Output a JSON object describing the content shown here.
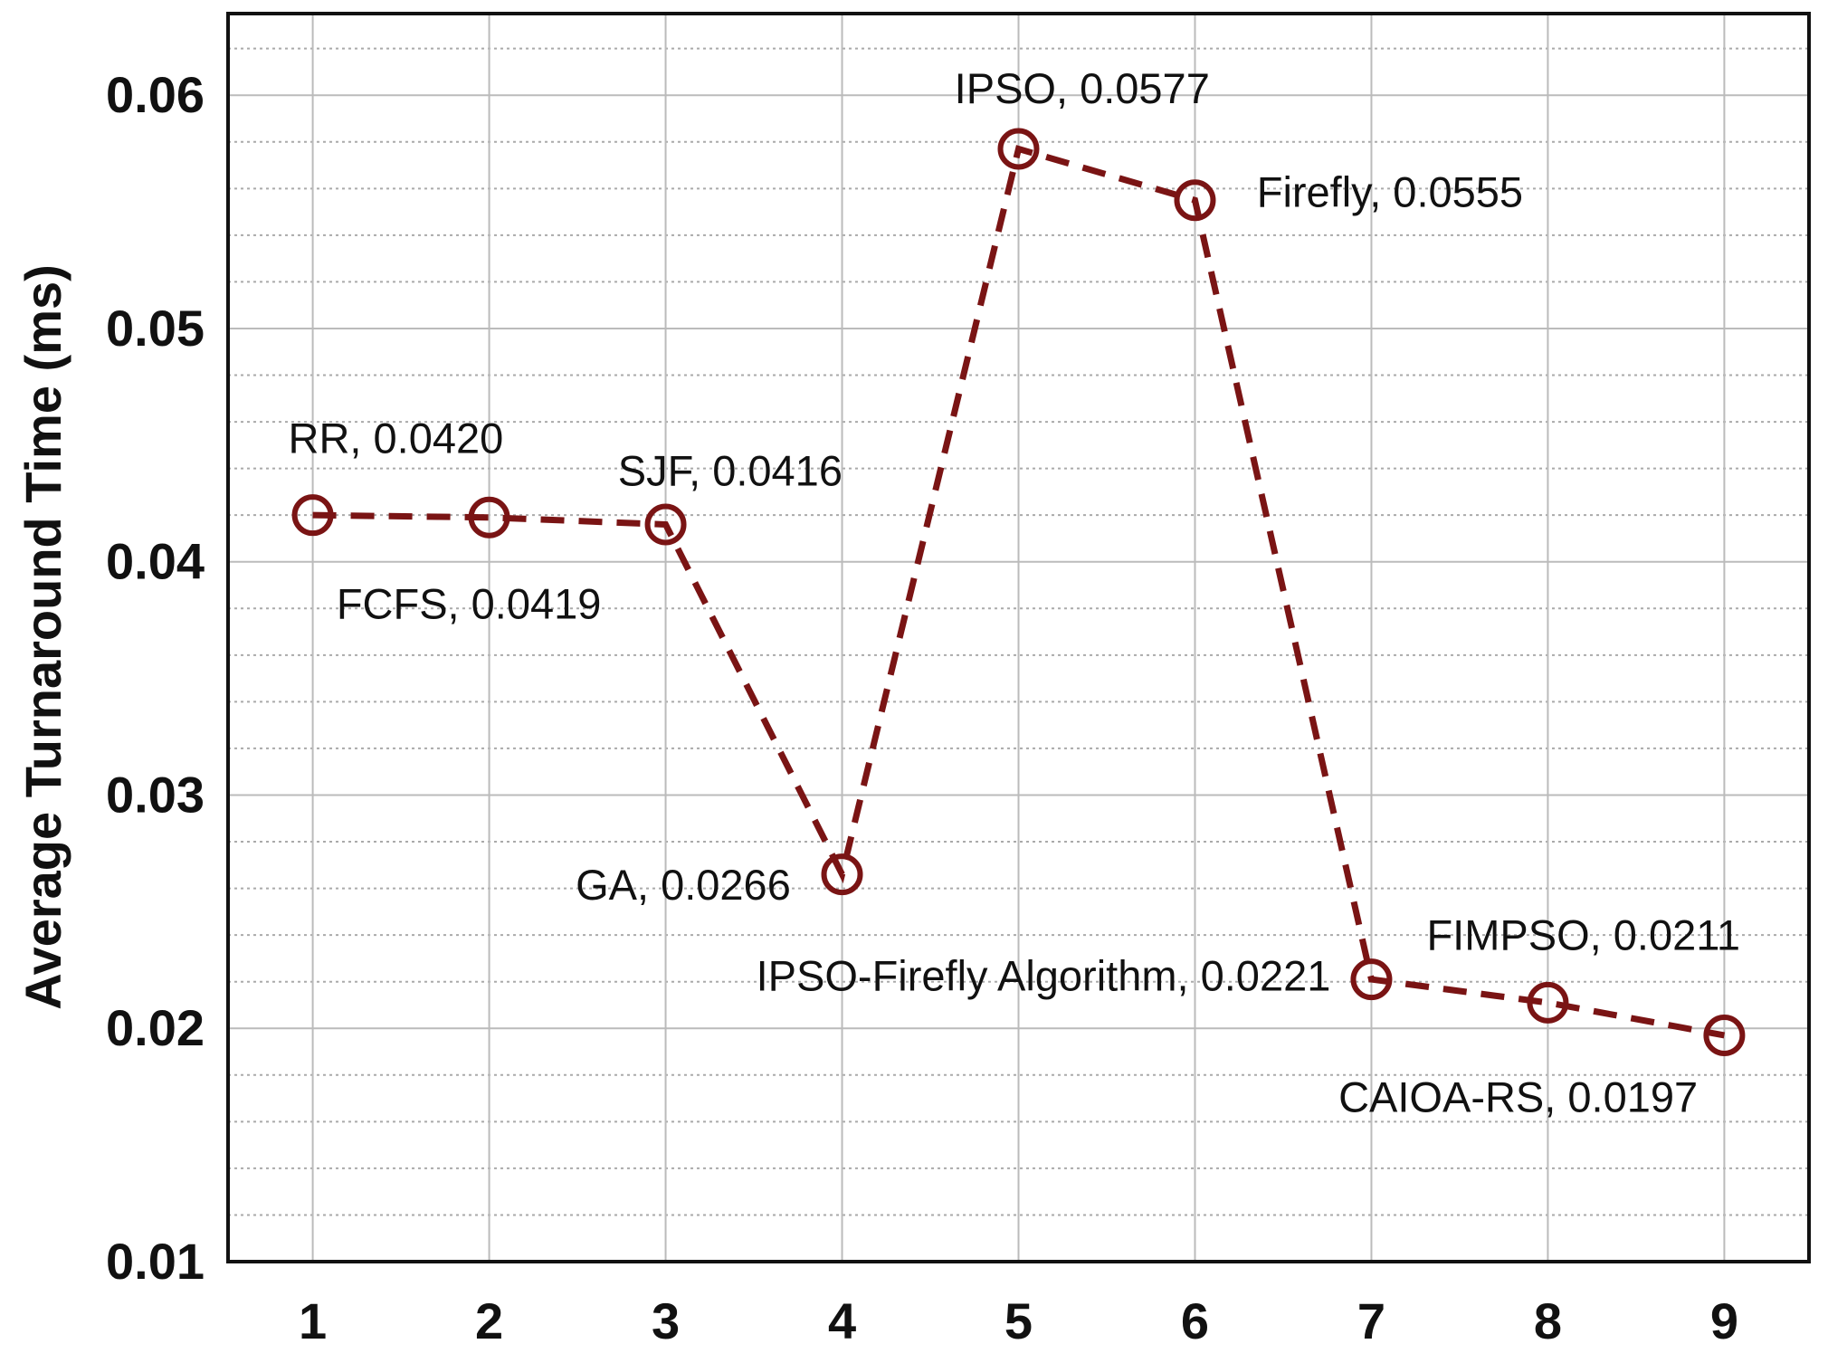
{
  "chart_data": {
    "type": "line",
    "y_label": "Average Turnaround Time (ms)",
    "x": [
      1,
      2,
      3,
      4,
      5,
      6,
      7,
      8,
      9
    ],
    "series": [
      {
        "color": "#7a1414",
        "values": [
          0.042,
          0.0419,
          0.0416,
          0.0266,
          0.0577,
          0.0555,
          0.0221,
          0.0211,
          0.0197
        ],
        "value_labels": [
          "RR, 0.0420",
          "FCFS, 0.0419",
          "SJF, 0.0416",
          "GA, 0.0266",
          "IPSO, 0.0577",
          "Firefly, 0.0555",
          "IPSO-Firefly Algorithm, 0.0221",
          "FIMPSO, 0.0211",
          "CAIOA-RS, 0.0197"
        ]
      }
    ],
    "xlim": [
      0.52,
      9.48
    ],
    "ylim": [
      0.01,
      0.0635
    ],
    "xticks": [
      1,
      2,
      3,
      4,
      5,
      6,
      7,
      8,
      9
    ],
    "yticks": [
      0.01,
      0.02,
      0.03,
      0.04,
      0.05,
      0.06
    ],
    "grid": true,
    "minor_grid": true
  }
}
